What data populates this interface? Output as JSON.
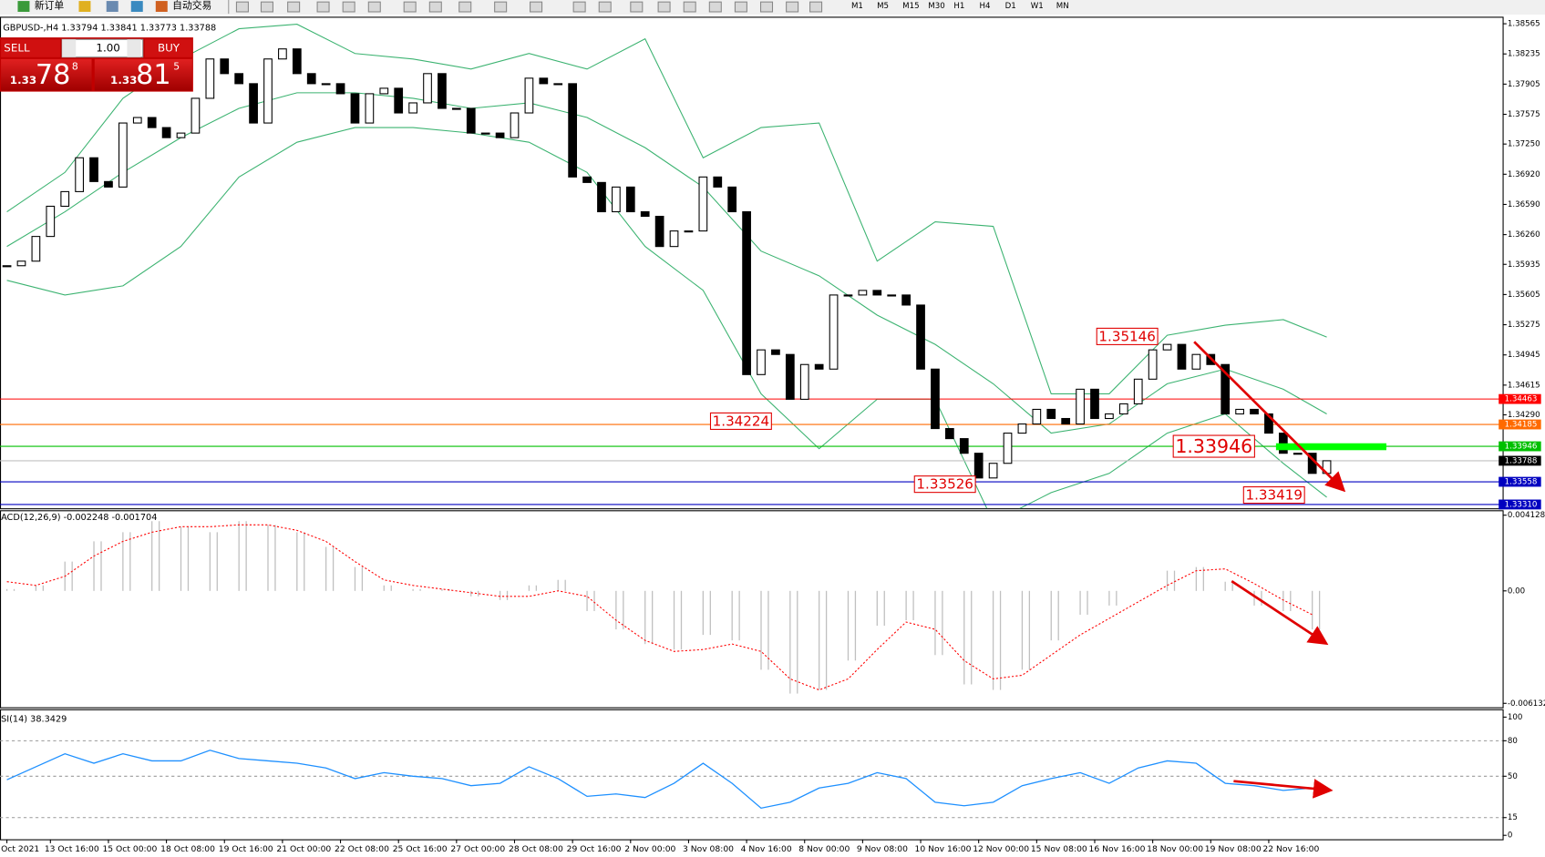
{
  "toolbar": {
    "new_order": "新订单",
    "auto_trading": "自动交易",
    "timeframes": [
      "M1",
      "M5",
      "M15",
      "M30",
      "H1",
      "H4",
      "D1",
      "W1",
      "MN"
    ]
  },
  "trade_panel": {
    "sell": "SELL",
    "buy": "BUY",
    "lot": "1.00",
    "sell_price": {
      "prefix": "1.33",
      "main": "78",
      "sup": "8"
    },
    "buy_price": {
      "prefix": "1.33",
      "main": "81",
      "sup": "5"
    }
  },
  "chart_data": [
    {
      "type": "candlestick",
      "title": "GBPUSD-,H4 1.33794 1.33841 1.33773 1.33788",
      "categories": [
        "Oct 2021",
        null,
        null,
        "13 Oct 16:00",
        null,
        null,
        null,
        "15 Oct 00:00",
        null,
        null,
        null,
        "18 Oct 08:00",
        null,
        null,
        null,
        "19 Oct 16:00",
        null,
        null,
        null,
        "21 Oct 00:00",
        null,
        null,
        null,
        "22 Oct 08:00",
        null,
        null,
        null,
        "25 Oct 16:00",
        null,
        null,
        null,
        "27 Oct 00:00",
        null,
        null,
        null,
        "28 Oct 08:00",
        null,
        null,
        null,
        "29 Oct 16:00",
        null,
        null,
        null,
        "2 Nov 00:00",
        null,
        null,
        null,
        "3 Nov 08:00",
        null,
        null,
        null,
        "4 Nov 16:00",
        null,
        null,
        null,
        "8 Nov 00:00",
        null,
        null,
        null,
        "9 Nov 08:00",
        null,
        null,
        null,
        "10 Nov 16:00",
        null,
        null,
        null,
        "12 Nov 00:00",
        null,
        null,
        null,
        "15 Nov 08:00",
        null,
        null,
        null,
        "16 Nov 16:00",
        null,
        null,
        null,
        "18 Nov 00:00",
        null,
        null,
        null,
        "19 Nov 08:00",
        null,
        null,
        null,
        "22 Nov 16:00",
        null,
        null,
        null,
        null
      ],
      "close": [
        1.3592,
        1.3597,
        1.3624,
        1.3657,
        1.3673,
        1.371,
        1.3684,
        1.3678,
        1.3748,
        1.3754,
        1.3743,
        1.3732,
        1.3737,
        1.3775,
        1.3818,
        1.3802,
        1.3791,
        1.3748,
        1.3818,
        1.3829,
        1.3802,
        1.3791,
        1.3791,
        1.378,
        1.3748,
        1.378,
        1.3786,
        1.3759,
        1.377,
        1.3802,
        1.3764,
        1.3764,
        1.3737,
        1.3737,
        1.3732,
        1.3759,
        1.3797,
        1.3791,
        1.3791,
        1.3689,
        1.3683,
        1.3651,
        1.3678,
        1.3651,
        1.3646,
        1.3613,
        1.363,
        1.363,
        1.3689,
        1.3678,
        1.3651,
        1.3473,
        1.35,
        1.3495,
        1.3446,
        1.3484,
        1.3479,
        1.356,
        1.356,
        1.3565,
        1.356,
        1.356,
        1.3549,
        1.3479,
        1.3414,
        1.3403,
        1.3387,
        1.336,
        1.3376,
        1.3409,
        1.3419,
        1.3435,
        1.3425,
        1.3419,
        1.3457,
        1.3425,
        1.343,
        1.3441,
        1.3468,
        1.35,
        1.3506,
        1.3479,
        1.3495,
        1.3484,
        1.343,
        1.3435,
        1.343,
        1.3409,
        1.3387,
        1.3387,
        1.3365,
        1.33788
      ],
      "up_color": "#ffffff",
      "down_color": "#000000",
      "ylim": [
        1.3329,
        1.3862
      ],
      "yticks": [
        1.38565,
        1.38235,
        1.37905,
        1.37575,
        {
          "value": 1.3725,
          "label": "1.37250"
        },
        {
          "value": 1.3692,
          "label": "1.36920"
        },
        {
          "value": 1.3659,
          "label": "1.36590"
        },
        {
          "value": 1.3626,
          "label": "1.36260"
        },
        1.35935,
        1.35605,
        1.35275,
        1.34945,
        1.34615,
        {
          "value": 1.3429,
          "label": "1.34290"
        }
      ],
      "bands": {
        "color": "#3cb371",
        "x": [
          0,
          4,
          8,
          12,
          16,
          20,
          24,
          28,
          32,
          36,
          40,
          44,
          48,
          52,
          56,
          60,
          64,
          68,
          72,
          76,
          80,
          84,
          88,
          91
        ],
        "upper": [
          1.3651,
          1.3694,
          1.3775,
          1.3818,
          1.3851,
          1.3856,
          1.3824,
          1.3818,
          1.3807,
          1.3824,
          1.3807,
          1.384,
          1.371,
          1.3743,
          1.3748,
          1.3597,
          1.364,
          1.3635,
          1.3452,
          1.3452,
          1.3516,
          1.3527,
          1.3533,
          1.3514
        ],
        "middle": [
          1.3613,
          1.3651,
          1.3694,
          1.3732,
          1.3764,
          1.3781,
          1.3781,
          1.3775,
          1.3764,
          1.377,
          1.3754,
          1.3721,
          1.3678,
          1.3608,
          1.3581,
          1.3538,
          1.3506,
          1.3463,
          1.3409,
          1.3419,
          1.3463,
          1.3479,
          1.3457,
          1.343
        ],
        "lower": [
          1.3576,
          1.356,
          1.357,
          1.3613,
          1.3689,
          1.3727,
          1.3743,
          1.3743,
          1.3737,
          1.3727,
          1.3694,
          1.3613,
          1.3565,
          1.3452,
          1.3392,
          1.3446,
          1.3446,
          1.3312,
          1.3344,
          1.3365,
          1.3409,
          1.343,
          1.3376,
          1.3339
        ]
      },
      "levels": [
        {
          "value": 1.34463,
          "color": "#ff0000"
        },
        {
          "value": 1.34185,
          "color": "#ff6a00"
        },
        {
          "value": 1.33946,
          "color": "#00c000"
        },
        {
          "value": 1.33788,
          "color": "#000000"
        },
        {
          "value": 1.33558,
          "color": "#0000c0"
        },
        {
          "value": 1.3331,
          "label": "1.33310",
          "color": "#0000c0"
        }
      ],
      "annotations": [
        "1.35146",
        "1.34224",
        "1.33526",
        "1.33946",
        "1.33419"
      ]
    },
    {
      "type": "macd",
      "title": "ACD(12,26,9) -0.002248 -0.001704",
      "x": [
        0,
        2,
        4,
        6,
        8,
        10,
        12,
        14,
        16,
        18,
        20,
        22,
        24,
        26,
        28,
        30,
        32,
        34,
        36,
        38,
        40,
        42,
        44,
        46,
        48,
        50,
        52,
        54,
        56,
        58,
        60,
        62,
        64,
        66,
        68,
        70,
        72,
        74,
        76,
        78,
        80,
        82,
        84,
        86,
        88,
        90
      ],
      "series": [
        {
          "kind": "histogram",
          "color": "#c0c0c0",
          "values": [
            0.0001,
            0.0003,
            0.0016,
            0.0027,
            0.0032,
            0.0038,
            0.0035,
            0.0032,
            0.0038,
            0.0036,
            0.0032,
            0.0024,
            0.0013,
            0.0003,
            0.0001,
            0.0001,
            -0.0003,
            -0.0005,
            0.0003,
            0.0006,
            -0.0011,
            -0.0021,
            -0.0029,
            -0.0032,
            -0.0024,
            -0.0027,
            -0.0043,
            -0.0056,
            -0.0054,
            -0.0038,
            -0.0019,
            -0.0016,
            -0.0035,
            -0.0051,
            -0.0054,
            -0.0043,
            -0.0027,
            -0.0013,
            -0.0008,
            0.0,
            0.0011,
            0.0013,
            0.0005,
            -0.0008,
            -0.0011,
            -0.0021
          ]
        },
        {
          "kind": "dotted",
          "color": "#ff0000",
          "values": [
            0.0005,
            0.0003,
            0.0008,
            0.0019,
            0.0027,
            0.0032,
            0.0035,
            0.0035,
            0.0036,
            0.0036,
            0.0033,
            0.0027,
            0.0016,
            0.0006,
            0.0003,
            0.0001,
            -0.0001,
            -0.0003,
            -0.0003,
            0.0,
            -0.0003,
            -0.0016,
            -0.0027,
            -0.0033,
            -0.0032,
            -0.0029,
            -0.0033,
            -0.0048,
            -0.0054,
            -0.0048,
            -0.0032,
            -0.0017,
            -0.0021,
            -0.0038,
            -0.0048,
            -0.0046,
            -0.0035,
            -0.0024,
            -0.0015,
            -0.0006,
            0.0003,
            0.0011,
            0.0012,
            0.0004,
            -0.0005,
            -0.0013
          ]
        }
      ],
      "ylim": [
        -0.006132,
        0.004128
      ],
      "yticks": [
        0.004128,
        {
          "value": 0,
          "label": "0.00"
        },
        -0.006132
      ]
    },
    {
      "type": "line",
      "title": "SI(14) 38.3429",
      "x": [
        0,
        2,
        4,
        6,
        8,
        10,
        12,
        14,
        16,
        18,
        20,
        22,
        24,
        26,
        28,
        30,
        32,
        34,
        36,
        38,
        40,
        42,
        44,
        46,
        48,
        50,
        52,
        54,
        56,
        58,
        60,
        62,
        64,
        66,
        68,
        70,
        72,
        74,
        76,
        78,
        80,
        82,
        84,
        86,
        88,
        90
      ],
      "values": [
        47,
        58,
        69,
        61,
        69,
        63,
        63,
        72,
        65,
        63,
        61,
        57,
        48,
        53,
        50,
        48,
        42,
        44,
        58,
        48,
        33,
        35,
        32,
        44,
        61,
        44,
        23,
        28,
        40,
        44,
        53,
        48,
        28,
        25,
        28,
        42,
        48,
        53,
        44,
        57,
        63,
        61,
        44,
        42,
        38,
        40
      ],
      "color": "#1e90ff",
      "ylim": [
        0,
        100
      ],
      "yticks": [
        100,
        80,
        50,
        15,
        0
      ],
      "dashed_levels": true
    }
  ]
}
